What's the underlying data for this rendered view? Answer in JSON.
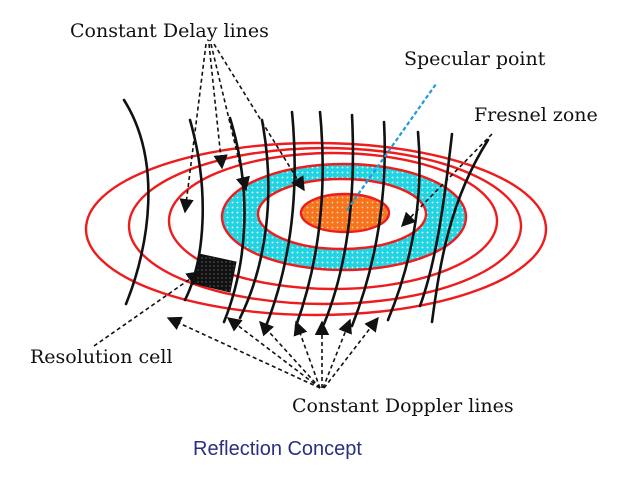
{
  "labels": {
    "constant_delay": "Constant Delay lines",
    "specular_point": "Specular point",
    "fresnel_zone": "Fresnel zone",
    "resolution_cell": "Resolution cell",
    "constant_doppler": "Constant Doppler lines"
  },
  "caption": "Reflection Concept",
  "colors": {
    "delay_rings": "#ee1c1c",
    "fresnel_fill": "#1fd3e0",
    "specular_fill": "#f7741e",
    "specular_line": "#1e9bdc",
    "doppler_lines": "#111111",
    "caption_text": "#2a2f80"
  }
}
